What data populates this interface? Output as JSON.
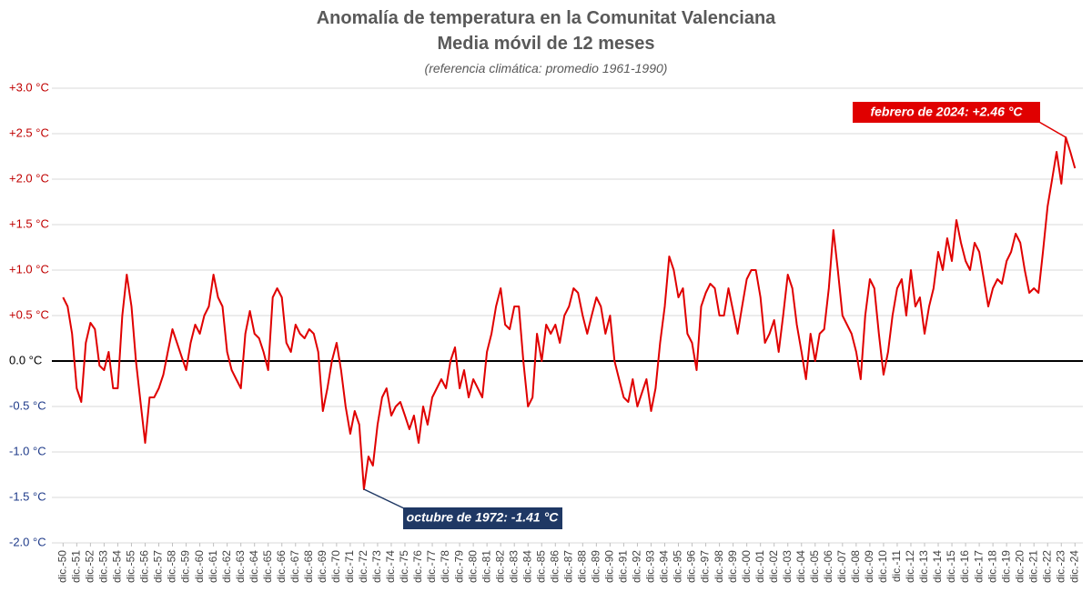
{
  "chart_data": {
    "type": "line",
    "title": "Anomalía de temperatura en la Comunitat Valenciana",
    "subtitle": "Media móvil de 12 meses",
    "note": "(referencia climática: promedio 1961-1990)",
    "annotations": [
      "febrero de 2024: +2.46 °C",
      "octubre de 1972: -1.41 °C"
    ],
    "color": "#e00000",
    "grid": true,
    "xlim": [
      1950.1,
      2025.5
    ],
    "ylim": [
      -2,
      3
    ],
    "yticks": [
      {
        "value": -2,
        "label": "-2.0 °C"
      },
      {
        "value": -1.5,
        "label": "-1.5 °C"
      },
      {
        "value": -1,
        "label": "-1.0 °C"
      },
      {
        "value": -0.5,
        "label": "-0.5 °C"
      },
      {
        "value": 0,
        "label": "0.0 °C"
      },
      {
        "value": 0.5,
        "label": "+0.5 °C"
      },
      {
        "value": 1,
        "label": "+1.0 °C"
      },
      {
        "value": 1.5,
        "label": "+1.5 °C"
      },
      {
        "value": 2,
        "label": "+2.0 °C"
      },
      {
        "value": 2.5,
        "label": "+2.5 °C"
      },
      {
        "value": 3,
        "label": "+3.0 °C"
      }
    ],
    "xticks": [
      {
        "value": 1950.92,
        "label": "dic.-50"
      },
      {
        "value": 1951.92,
        "label": "dic.-51"
      },
      {
        "value": 1952.92,
        "label": "dic.-52"
      },
      {
        "value": 1953.92,
        "label": "dic.-53"
      },
      {
        "value": 1954.92,
        "label": "dic.-54"
      },
      {
        "value": 1955.92,
        "label": "dic.-55"
      },
      {
        "value": 1956.92,
        "label": "dic.-56"
      },
      {
        "value": 1957.92,
        "label": "dic.-57"
      },
      {
        "value": 1958.92,
        "label": "dic.-58"
      },
      {
        "value": 1959.92,
        "label": "dic.-59"
      },
      {
        "value": 1960.92,
        "label": "dic.-60"
      },
      {
        "value": 1961.92,
        "label": "dic.-61"
      },
      {
        "value": 1962.92,
        "label": "dic.-62"
      },
      {
        "value": 1963.92,
        "label": "dic.-63"
      },
      {
        "value": 1964.92,
        "label": "dic.-64"
      },
      {
        "value": 1965.92,
        "label": "dic.-65"
      },
      {
        "value": 1966.92,
        "label": "dic.-66"
      },
      {
        "value": 1967.92,
        "label": "dic.-67"
      },
      {
        "value": 1968.92,
        "label": "dic.-68"
      },
      {
        "value": 1969.92,
        "label": "dic.-69"
      },
      {
        "value": 1970.92,
        "label": "dic.-70"
      },
      {
        "value": 1971.92,
        "label": "dic.-71"
      },
      {
        "value": 1972.92,
        "label": "dic.-72"
      },
      {
        "value": 1973.92,
        "label": "dic.-73"
      },
      {
        "value": 1974.92,
        "label": "dic.-74"
      },
      {
        "value": 1975.92,
        "label": "dic.-75"
      },
      {
        "value": 1976.92,
        "label": "dic.-76"
      },
      {
        "value": 1977.92,
        "label": "dic.-77"
      },
      {
        "value": 1978.92,
        "label": "dic.-78"
      },
      {
        "value": 1979.92,
        "label": "dic.-79"
      },
      {
        "value": 1980.92,
        "label": "dic.-80"
      },
      {
        "value": 1981.92,
        "label": "dic.-81"
      },
      {
        "value": 1982.92,
        "label": "dic.-82"
      },
      {
        "value": 1983.92,
        "label": "dic.-83"
      },
      {
        "value": 1984.92,
        "label": "dic.-84"
      },
      {
        "value": 1985.92,
        "label": "dic.-85"
      },
      {
        "value": 1986.92,
        "label": "dic.-86"
      },
      {
        "value": 1987.92,
        "label": "dic.-87"
      },
      {
        "value": 1988.92,
        "label": "dic.-88"
      },
      {
        "value": 1989.92,
        "label": "dic.-89"
      },
      {
        "value": 1990.92,
        "label": "dic.-90"
      },
      {
        "value": 1991.92,
        "label": "dic.-91"
      },
      {
        "value": 1992.92,
        "label": "dic.-92"
      },
      {
        "value": 1993.92,
        "label": "dic.-93"
      },
      {
        "value": 1994.92,
        "label": "dic.-94"
      },
      {
        "value": 1995.92,
        "label": "dic.-95"
      },
      {
        "value": 1996.92,
        "label": "dic.-96"
      },
      {
        "value": 1997.92,
        "label": "dic.-97"
      },
      {
        "value": 1998.92,
        "label": "dic.-98"
      },
      {
        "value": 1999.92,
        "label": "dic.-99"
      },
      {
        "value": 2000.92,
        "label": "dic.-00"
      },
      {
        "value": 2001.92,
        "label": "dic.-01"
      },
      {
        "value": 2002.92,
        "label": "dic.-02"
      },
      {
        "value": 2003.92,
        "label": "dic.-03"
      },
      {
        "value": 2004.92,
        "label": "dic.-04"
      },
      {
        "value": 2005.92,
        "label": "dic.-05"
      },
      {
        "value": 2006.92,
        "label": "dic.-06"
      },
      {
        "value": 2007.92,
        "label": "dic.-07"
      },
      {
        "value": 2008.92,
        "label": "dic.-08"
      },
      {
        "value": 2009.92,
        "label": "dic.-09"
      },
      {
        "value": 2010.92,
        "label": "dic.-10"
      },
      {
        "value": 2011.92,
        "label": "dic.-11"
      },
      {
        "value": 2012.92,
        "label": "dic.-12"
      },
      {
        "value": 2013.92,
        "label": "dic.-13"
      },
      {
        "value": 2014.92,
        "label": "dic.-14"
      },
      {
        "value": 2015.92,
        "label": "dic.-15"
      },
      {
        "value": 2016.92,
        "label": "dic.-16"
      },
      {
        "value": 2017.92,
        "label": "dic.-17"
      },
      {
        "value": 2018.92,
        "label": "dic.-18"
      },
      {
        "value": 2019.92,
        "label": "dic.-19"
      },
      {
        "value": 2020.92,
        "label": "dic.-20"
      },
      {
        "value": 2021.92,
        "label": "dic.-21"
      },
      {
        "value": 2022.92,
        "label": "dic.-22"
      },
      {
        "value": 2023.92,
        "label": "dic.-23"
      },
      {
        "value": 2024.92,
        "label": "dic.-24"
      }
    ],
    "x": [
      1950.92,
      1951.25,
      1951.58,
      1951.92,
      1952.25,
      1952.58,
      1952.92,
      1953.25,
      1953.58,
      1953.92,
      1954.25,
      1954.58,
      1954.92,
      1955.25,
      1955.58,
      1955.92,
      1956.25,
      1956.58,
      1956.92,
      1957.25,
      1957.58,
      1957.92,
      1958.25,
      1958.58,
      1958.92,
      1959.25,
      1959.58,
      1959.92,
      1960.25,
      1960.58,
      1960.92,
      1961.25,
      1961.58,
      1961.92,
      1962.25,
      1962.58,
      1962.92,
      1963.25,
      1963.58,
      1963.92,
      1964.25,
      1964.58,
      1964.92,
      1965.25,
      1965.58,
      1965.92,
      1966.25,
      1966.58,
      1966.92,
      1967.25,
      1967.58,
      1967.92,
      1968.25,
      1968.58,
      1968.92,
      1969.25,
      1969.58,
      1969.92,
      1970.25,
      1970.58,
      1970.92,
      1971.25,
      1971.58,
      1971.92,
      1972.25,
      1972.58,
      1972.92,
      1973.25,
      1973.58,
      1973.92,
      1974.25,
      1974.58,
      1974.92,
      1975.25,
      1975.58,
      1975.92,
      1976.25,
      1976.58,
      1976.92,
      1977.25,
      1977.58,
      1977.92,
      1978.25,
      1978.58,
      1978.92,
      1979.25,
      1979.58,
      1979.92,
      1980.25,
      1980.58,
      1980.92,
      1981.25,
      1981.58,
      1981.92,
      1982.25,
      1982.58,
      1982.92,
      1983.25,
      1983.58,
      1983.92,
      1984.25,
      1984.58,
      1984.92,
      1985.25,
      1985.58,
      1985.92,
      1986.25,
      1986.58,
      1986.92,
      1987.25,
      1987.58,
      1987.92,
      1988.25,
      1988.58,
      1988.92,
      1989.25,
      1989.58,
      1989.92,
      1990.25,
      1990.58,
      1990.92,
      1991.25,
      1991.58,
      1991.92,
      1992.25,
      1992.58,
      1992.92,
      1993.25,
      1993.58,
      1993.92,
      1994.25,
      1994.58,
      1994.92,
      1995.25,
      1995.58,
      1995.92,
      1996.25,
      1996.58,
      1996.92,
      1997.25,
      1997.58,
      1997.92,
      1998.25,
      1998.58,
      1998.92,
      1999.25,
      1999.58,
      1999.92,
      2000.25,
      2000.58,
      2000.92,
      2001.25,
      2001.58,
      2001.92,
      2002.25,
      2002.58,
      2002.92,
      2003.25,
      2003.58,
      2003.92,
      2004.25,
      2004.58,
      2004.92,
      2005.25,
      2005.58,
      2005.92,
      2006.25,
      2006.58,
      2006.92,
      2007.25,
      2007.58,
      2007.92,
      2008.25,
      2008.58,
      2008.92,
      2009.25,
      2009.58,
      2009.92,
      2010.25,
      2010.58,
      2010.92,
      2011.25,
      2011.58,
      2011.92,
      2012.25,
      2012.58,
      2012.92,
      2013.25,
      2013.58,
      2013.92,
      2014.25,
      2014.58,
      2014.92,
      2015.25,
      2015.58,
      2015.92,
      2016.25,
      2016.58,
      2016.92,
      2017.25,
      2017.58,
      2017.92,
      2018.25,
      2018.58,
      2018.92,
      2019.25,
      2019.58,
      2019.92,
      2020.25,
      2020.58,
      2020.92,
      2021.25,
      2021.58,
      2021.92,
      2022.25,
      2022.58,
      2022.92,
      2023.25,
      2023.58,
      2023.92,
      2024.25,
      2024.58,
      2024.92
    ],
    "values": [
      0.7,
      0.6,
      0.3,
      -0.3,
      -0.45,
      0.2,
      0.42,
      0.35,
      -0.05,
      -0.1,
      0.1,
      -0.3,
      -0.3,
      0.5,
      0.95,
      0.6,
      0.0,
      -0.45,
      -0.9,
      -0.4,
      -0.4,
      -0.3,
      -0.15,
      0.1,
      0.35,
      0.2,
      0.05,
      -0.1,
      0.2,
      0.4,
      0.3,
      0.5,
      0.6,
      0.95,
      0.7,
      0.6,
      0.1,
      -0.1,
      -0.2,
      -0.3,
      0.3,
      0.55,
      0.3,
      0.25,
      0.1,
      -0.1,
      0.7,
      0.8,
      0.7,
      0.2,
      0.1,
      0.4,
      0.3,
      0.25,
      0.35,
      0.3,
      0.1,
      -0.55,
      -0.3,
      0.0,
      0.2,
      -0.1,
      -0.5,
      -0.8,
      -0.55,
      -0.7,
      -1.41,
      -1.05,
      -1.15,
      -0.7,
      -0.4,
      -0.3,
      -0.6,
      -0.5,
      -0.45,
      -0.6,
      -0.75,
      -0.6,
      -0.9,
      -0.5,
      -0.7,
      -0.4,
      -0.3,
      -0.2,
      -0.3,
      0.0,
      0.15,
      -0.3,
      -0.1,
      -0.4,
      -0.2,
      -0.3,
      -0.4,
      0.1,
      0.3,
      0.6,
      0.8,
      0.4,
      0.35,
      0.6,
      0.6,
      0.0,
      -0.5,
      -0.4,
      0.3,
      0.0,
      0.4,
      0.3,
      0.4,
      0.2,
      0.5,
      0.6,
      0.8,
      0.75,
      0.5,
      0.3,
      0.5,
      0.7,
      0.6,
      0.3,
      0.5,
      0.0,
      -0.2,
      -0.4,
      -0.45,
      -0.2,
      -0.5,
      -0.35,
      -0.2,
      -0.55,
      -0.3,
      0.2,
      0.6,
      1.15,
      1.0,
      0.7,
      0.8,
      0.3,
      0.2,
      -0.1,
      0.6,
      0.75,
      0.85,
      0.8,
      0.5,
      0.5,
      0.8,
      0.55,
      0.3,
      0.6,
      0.9,
      1.0,
      1.0,
      0.7,
      0.2,
      0.3,
      0.45,
      0.1,
      0.5,
      0.95,
      0.8,
      0.4,
      0.1,
      -0.2,
      0.3,
      0.0,
      0.3,
      0.35,
      0.8,
      1.44,
      1.0,
      0.5,
      0.4,
      0.3,
      0.1,
      -0.2,
      0.5,
      0.9,
      0.8,
      0.3,
      -0.15,
      0.1,
      0.5,
      0.8,
      0.9,
      0.5,
      1.0,
      0.6,
      0.7,
      0.3,
      0.6,
      0.8,
      1.2,
      1.0,
      1.35,
      1.1,
      1.55,
      1.3,
      1.1,
      1.0,
      1.3,
      1.2,
      0.9,
      0.6,
      0.8,
      0.9,
      0.85,
      1.1,
      1.2,
      1.4,
      1.3,
      1.0,
      0.75,
      0.8,
      0.75,
      1.2,
      1.7,
      2.0,
      2.3,
      1.95,
      2.46,
      2.3,
      2.12
    ]
  }
}
